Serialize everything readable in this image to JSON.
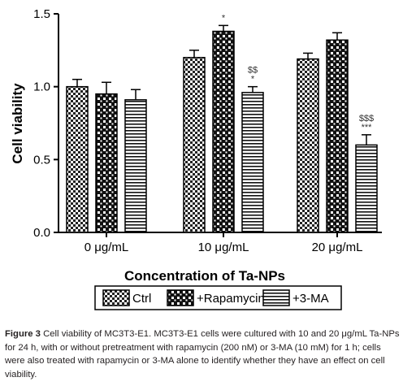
{
  "chart_data": {
    "type": "bar",
    "categories": [
      "0 μg/mL",
      "10 μg/mL",
      "20 μg/mL"
    ],
    "series": [
      {
        "name": "Ctrl",
        "values": [
          1.0,
          1.2,
          1.19
        ],
        "errors": [
          0.05,
          0.05,
          0.04
        ],
        "pattern": "checker"
      },
      {
        "name": "+Rapamycin",
        "values": [
          0.95,
          1.38,
          1.32
        ],
        "errors": [
          0.08,
          0.04,
          0.05
        ],
        "pattern": "dots"
      },
      {
        "name": "+3-MA",
        "values": [
          0.91,
          0.96,
          0.6
        ],
        "errors": [
          0.07,
          0.04,
          0.07
        ],
        "pattern": "hlines"
      }
    ],
    "annotations": [
      {
        "category": 1,
        "series": 1,
        "lines": [
          "*"
        ]
      },
      {
        "category": 1,
        "series": 2,
        "lines": [
          "$$",
          "*"
        ]
      },
      {
        "category": 2,
        "series": 2,
        "lines": [
          "$$$",
          "***"
        ]
      }
    ],
    "xlabel": "Concentration of Ta-NPs",
    "ylabel": "Cell viability",
    "ylim": [
      0,
      1.5
    ],
    "yticks": [
      0.0,
      0.5,
      1.0,
      1.5
    ],
    "ytick_labels": [
      "0.0",
      "0.5",
      "1.0",
      "1.5"
    ],
    "legend_position": "bottom",
    "grid": false
  },
  "caption": {
    "label": "Figure 3",
    "text": "Cell viability of MC3T3-E1. MC3T3-E1 cells were cultured with 10 and 20 μg/mL Ta-NPs for 24 h, with or without pretreatment with rapamycin (200 nM) or 3-MA (10 mM) for 1 h; cells were also treated with rapamycin or 3-MA alone to identify whether they have an effect on cell viability."
  }
}
